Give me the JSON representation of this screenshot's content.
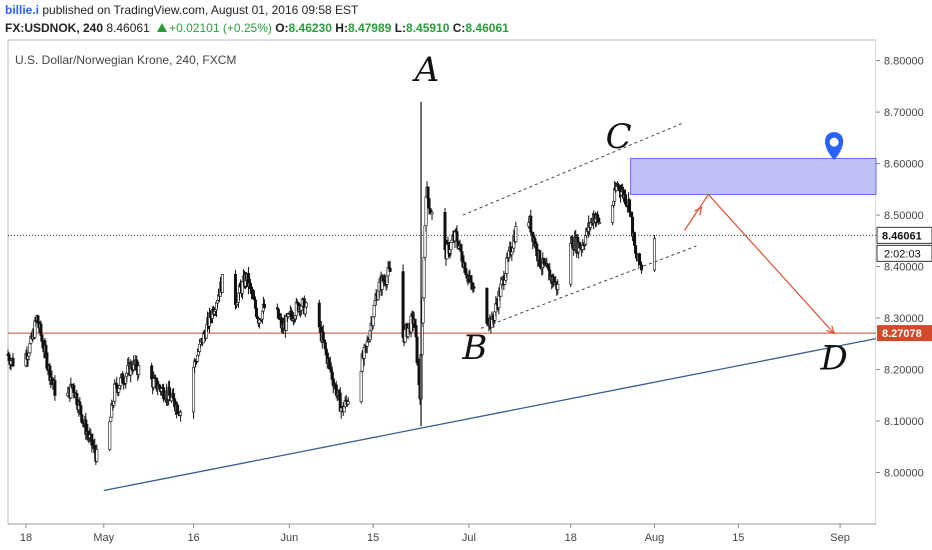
{
  "header": {
    "username": "billie.i",
    "published": "published on TradingView.com, August 01, 2016 09:58 EST",
    "symbol": "FX:USDNOK, 240",
    "last": "8.46061",
    "change": "+0.02101 (+0.25%)",
    "o_label": "O:",
    "o_value": "8.46230",
    "h_label": "H:",
    "h_value": "8.47989",
    "l_label": "L:",
    "l_value": "8.45910",
    "c_label": "C:",
    "c_value": "8.46061"
  },
  "colors": {
    "up": "#2a9d3a",
    "accent": "#2962ff",
    "support_line": "#d14b2a",
    "trend_line": "#3a5d8f",
    "resistance_zone": "#8c8cf2"
  },
  "chart_data": {
    "type": "candlestick",
    "title": "U.S. Dollar/Norwegian Krone, 240, FXCM",
    "ylim": [
      7.9,
      8.84
    ],
    "y_ticks": [
      "8.80000",
      "8.70000",
      "8.60000",
      "8.50000",
      "8.40000",
      "8.30000",
      "8.20000",
      "8.10000",
      "8.00000"
    ],
    "y_tick_values": [
      8.8,
      8.7,
      8.6,
      8.5,
      8.4,
      8.3,
      8.2,
      8.1,
      8.0
    ],
    "x_range": [
      "2016-04-15",
      "2016-09-07"
    ],
    "x_ticks": [
      "18",
      "May",
      "16",
      "Jun",
      "15",
      "Jul",
      "18",
      "Aug",
      "15",
      "Sep"
    ],
    "x_tick_dates": [
      "2016-04-18",
      "2016-05-01",
      "2016-05-16",
      "2016-06-01",
      "2016-06-15",
      "2016-07-01",
      "2016-07-18",
      "2016-08-01",
      "2016-08-15",
      "2016-09-01"
    ],
    "price_marker": {
      "label": "8.46061",
      "value": 8.46061
    },
    "countdown": "2:02:03",
    "support_marker": {
      "label": "8.27078",
      "value": 8.27078
    },
    "support_line": 8.27078,
    "close_path": [
      [
        "2016-04-15",
        8.23
      ],
      [
        "2016-04-17",
        8.2
      ],
      [
        "2016-04-19",
        8.25
      ],
      [
        "2016-04-20",
        8.3
      ],
      [
        "2016-04-22",
        8.2
      ],
      [
        "2016-04-24",
        8.12
      ],
      [
        "2016-04-26",
        8.17
      ],
      [
        "2016-04-28",
        8.09
      ],
      [
        "2016-04-30",
        8.03
      ],
      [
        "2016-05-01",
        8.0
      ],
      [
        "2016-05-03",
        8.16
      ],
      [
        "2016-05-06",
        8.21
      ],
      [
        "2016-05-09",
        8.18
      ],
      [
        "2016-05-12",
        8.15
      ],
      [
        "2016-05-14",
        8.12
      ],
      [
        "2016-05-16",
        8.2
      ],
      [
        "2016-05-18",
        8.27
      ],
      [
        "2016-05-21",
        8.37
      ],
      [
        "2016-05-23",
        8.33
      ],
      [
        "2016-05-25",
        8.38
      ],
      [
        "2016-05-27",
        8.3
      ],
      [
        "2016-05-29",
        8.34
      ],
      [
        "2016-05-31",
        8.28
      ],
      [
        "2016-06-03",
        8.33
      ],
      [
        "2016-06-06",
        8.29
      ],
      [
        "2016-06-08",
        8.2
      ],
      [
        "2016-06-10",
        8.12
      ],
      [
        "2016-06-12",
        8.17
      ],
      [
        "2016-06-14",
        8.24
      ],
      [
        "2016-06-16",
        8.36
      ],
      [
        "2016-06-18",
        8.39
      ],
      [
        "2016-06-20",
        8.26
      ],
      [
        "2016-06-22",
        8.3
      ],
      [
        "2016-06-23",
        8.15
      ],
      [
        "2016-06-24",
        8.55
      ],
      [
        "2016-06-25",
        8.5
      ],
      [
        "2016-06-27",
        8.42
      ],
      [
        "2016-06-29",
        8.46
      ],
      [
        "2016-07-01",
        8.38
      ],
      [
        "2016-07-03",
        8.32
      ],
      [
        "2016-07-05",
        8.29
      ],
      [
        "2016-07-07",
        8.38
      ],
      [
        "2016-07-09",
        8.47
      ],
      [
        "2016-07-11",
        8.5
      ],
      [
        "2016-07-13",
        8.41
      ],
      [
        "2016-07-16",
        8.36
      ],
      [
        "2016-07-18",
        8.45
      ],
      [
        "2016-07-20",
        8.44
      ],
      [
        "2016-07-22",
        8.5
      ],
      [
        "2016-07-24",
        8.47
      ],
      [
        "2016-07-26",
        8.56
      ],
      [
        "2016-07-28",
        8.52
      ],
      [
        "2016-07-29",
        8.42
      ],
      [
        "2016-07-30",
        8.4
      ],
      [
        "2016-08-01",
        8.46
      ]
    ],
    "annotations": {
      "labels": [
        {
          "text": "A",
          "date": "2016-06-24",
          "value": 8.76
        },
        {
          "text": "B",
          "date": "2016-07-02",
          "value": 8.22
        },
        {
          "text": "C",
          "date": "2016-07-26",
          "value": 8.63
        },
        {
          "text": "D",
          "date": "2016-08-31",
          "value": 8.2
        }
      ],
      "trend_line": [
        [
          "2016-05-01",
          7.965
        ],
        [
          "2016-09-07",
          8.26
        ]
      ],
      "channel_upper": [
        [
          "2016-06-30",
          8.5
        ],
        [
          "2016-08-06",
          8.68
        ]
      ],
      "channel_lower": [
        [
          "2016-07-03",
          8.28
        ],
        [
          "2016-08-08",
          8.44
        ]
      ],
      "projection": [
        [
          "2016-08-06",
          8.47
        ],
        [
          "2016-08-10",
          8.54
        ],
        [
          "2016-08-31",
          8.27
        ]
      ],
      "zone": {
        "date_from": "2016-07-28",
        "date_to": "2016-09-07",
        "low": 8.54,
        "high": 8.61
      },
      "pin_marker": {
        "date": "2016-08-31",
        "value": 8.63
      }
    }
  }
}
